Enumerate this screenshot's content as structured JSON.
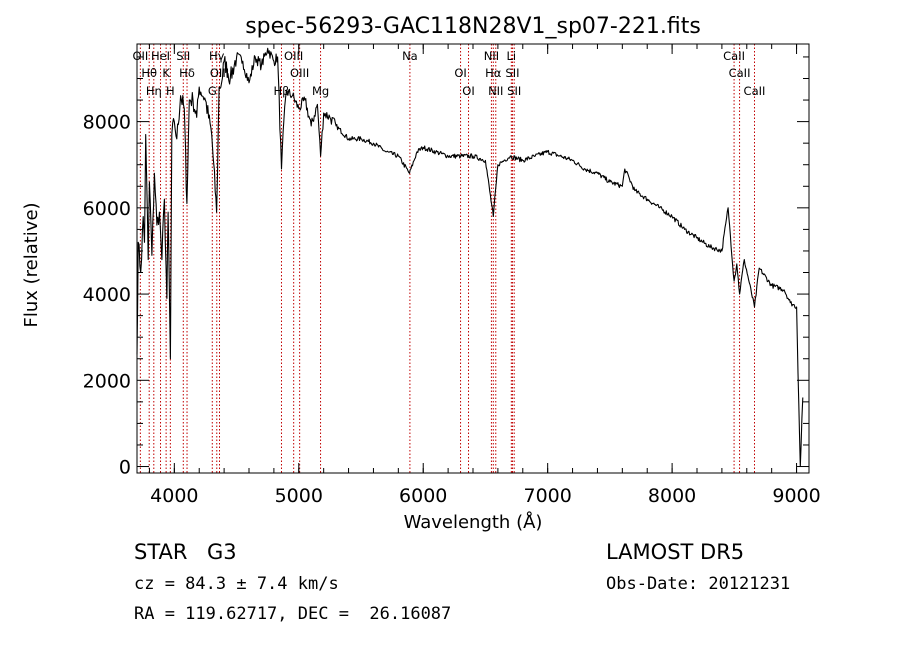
{
  "chart_data": {
    "type": "line",
    "title": "spec-56293-GAC118N28V1_sp07-221.fits",
    "xlabel": "Wavelength (Å)",
    "ylabel": "Flux (relative)",
    "xlim": [
      3700,
      9100
    ],
    "ylim": [
      -150,
      9800
    ],
    "x_ticks": [
      4000,
      5000,
      6000,
      7000,
      8000,
      9000
    ],
    "y_ticks": [
      0,
      2000,
      4000,
      6000,
      8000
    ],
    "grid": false,
    "series": [
      {
        "x": [
          3700,
          3710,
          3730,
          3750,
          3760,
          3770,
          3790,
          3800,
          3820,
          3840,
          3860,
          3880,
          3900,
          3920,
          3940,
          3950,
          3968,
          3980,
          4000,
          4020,
          4050,
          4080,
          4101,
          4120,
          4150,
          4180,
          4200,
          4250,
          4300,
          4340,
          4360,
          4380,
          4400,
          4450,
          4500,
          4550,
          4600,
          4650,
          4700,
          4750,
          4800,
          4830,
          4861,
          4880,
          4900,
          4950,
          5000,
          5050,
          5100,
          5150,
          5175,
          5200,
          5250,
          5300,
          5400,
          5500,
          5600,
          5700,
          5800,
          5890,
          5950,
          6000,
          6100,
          6200,
          6300,
          6400,
          6500,
          6563,
          6600,
          6650,
          6700,
          6800,
          6900,
          7000,
          7100,
          7200,
          7300,
          7400,
          7500,
          7600,
          7620,
          7700,
          7800,
          7900,
          8000,
          8100,
          8200,
          8300,
          8400,
          8450,
          8498,
          8520,
          8542,
          8580,
          8662,
          8700,
          8800,
          8900,
          8950,
          9000,
          9030,
          9050
        ],
        "y": [
          2600,
          5200,
          4500,
          5800,
          5200,
          7700,
          4800,
          6600,
          4900,
          6800,
          5600,
          5900,
          4800,
          6200,
          3900,
          5900,
          2500,
          7700,
          8000,
          7600,
          8600,
          8300,
          6100,
          8500,
          8500,
          8100,
          8800,
          8500,
          7700,
          5900,
          8800,
          8900,
          9400,
          9000,
          9500,
          9400,
          8900,
          9500,
          9300,
          9700,
          9400,
          9500,
          6900,
          8000,
          8700,
          8600,
          8300,
          8500,
          7900,
          8400,
          7200,
          8200,
          8100,
          7900,
          7600,
          7600,
          7500,
          7300,
          7200,
          6800,
          7300,
          7400,
          7300,
          7200,
          7200,
          7200,
          7100,
          5800,
          7000,
          7100,
          7200,
          7100,
          7200,
          7300,
          7200,
          7100,
          6900,
          6800,
          6600,
          6500,
          6900,
          6400,
          6200,
          6000,
          5800,
          5500,
          5300,
          5100,
          5000,
          6000,
          4300,
          4700,
          4000,
          4800,
          3700,
          4600,
          4200,
          4100,
          3800,
          3700,
          0,
          1600
        ]
      }
    ],
    "lines": [
      {
        "w": 3727,
        "label": "OII"
      },
      {
        "w": 3798,
        "label": "Hθ"
      },
      {
        "w": 3835,
        "label": "Hη"
      },
      {
        "w": 3889,
        "label": "HeI"
      },
      {
        "w": 3934,
        "label": "K"
      },
      {
        "w": 3968,
        "label": "H"
      },
      {
        "w": 4072,
        "label": "SII"
      },
      {
        "w": 4102,
        "label": "Hδ"
      },
      {
        "w": 4305,
        "label": "G"
      },
      {
        "w": 4341,
        "label": "Hγ"
      },
      {
        "w": 4363,
        "label": "OIII"
      },
      {
        "w": 4861,
        "label": "Hβ"
      },
      {
        "w": 4959,
        "label": "OIII"
      },
      {
        "w": 5007,
        "label": "OIII"
      },
      {
        "w": 5175,
        "label": "Mg"
      },
      {
        "w": 5893,
        "label": "Na"
      },
      {
        "w": 6300,
        "label": "OI"
      },
      {
        "w": 6364,
        "label": "OI"
      },
      {
        "w": 6548,
        "label": "NII"
      },
      {
        "w": 6563,
        "label": "Hα"
      },
      {
        "w": 6583,
        "label": "NII"
      },
      {
        "w": 6708,
        "label": "Li"
      },
      {
        "w": 6717,
        "label": "SII"
      },
      {
        "w": 6731,
        "label": "SII"
      },
      {
        "w": 8498,
        "label": "CaII"
      },
      {
        "w": 8542,
        "label": "CaII"
      },
      {
        "w": 8662,
        "label": "CaII"
      }
    ]
  },
  "info": {
    "class_label": "STAR",
    "subclass": "G3",
    "survey": "LAMOST DR5",
    "cz": "cz = 84.3 ± 7.4 km/s",
    "obs_date": "Obs-Date: 20121231",
    "radec": "RA = 119.62717, DEC =  26.16087"
  }
}
